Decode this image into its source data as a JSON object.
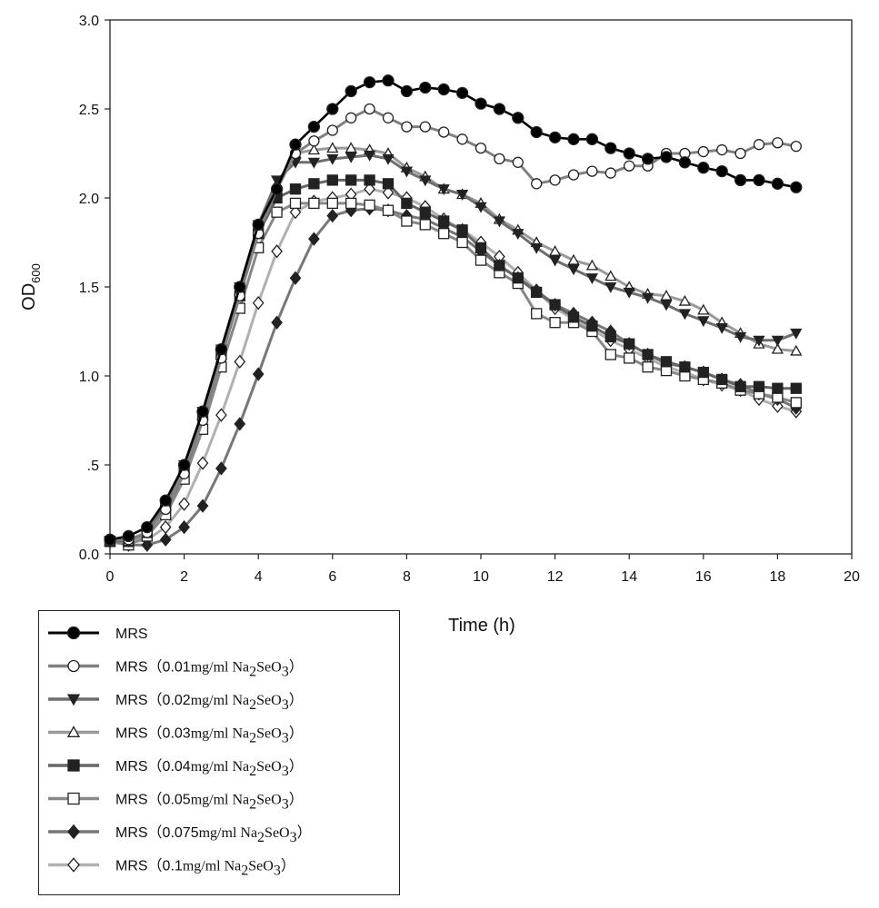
{
  "chart_data": {
    "type": "line",
    "xlabel": "Time (h)",
    "ylabel": "OD",
    "ylabel_sub": "600",
    "xlim": [
      0,
      20
    ],
    "ylim": [
      0,
      3.0
    ],
    "x_ticks": [
      0,
      2,
      4,
      6,
      8,
      10,
      12,
      14,
      16,
      18,
      20
    ],
    "y_ticks": [
      0,
      0.5,
      1.0,
      1.5,
      2.0,
      2.5,
      3.0
    ],
    "x_tick_labels": [
      "0",
      "2",
      "4",
      "6",
      "8",
      "10",
      "12",
      "14",
      "16",
      "18",
      "20"
    ],
    "y_tick_labels": [
      "0.0",
      ".5",
      "1.0",
      "1.5",
      "2.0",
      "2.5",
      "3.0"
    ],
    "grid": false,
    "legend_position": "below-left",
    "series": [
      {
        "name": "MRS",
        "label_main": "MRS",
        "label_conc": "",
        "marker": "circle-filled",
        "line_color": "#000000",
        "fill": "#000000",
        "x": [
          0,
          0.5,
          1,
          1.5,
          2,
          2.5,
          3,
          3.5,
          4,
          4.5,
          5,
          5.5,
          6,
          6.5,
          7,
          7.5,
          8,
          8.5,
          9,
          9.5,
          10,
          10.5,
          11,
          11.5,
          12,
          12.5,
          13,
          13.5,
          14,
          14.5,
          15,
          15.5,
          16,
          16.5,
          17,
          17.5,
          18,
          18.5
        ],
        "y": [
          0.08,
          0.1,
          0.15,
          0.3,
          0.5,
          0.8,
          1.15,
          1.5,
          1.85,
          2.05,
          2.3,
          2.4,
          2.5,
          2.6,
          2.65,
          2.66,
          2.6,
          2.62,
          2.61,
          2.59,
          2.53,
          2.5,
          2.45,
          2.37,
          2.34,
          2.33,
          2.33,
          2.28,
          2.25,
          2.22,
          2.23,
          2.2,
          2.17,
          2.15,
          2.1,
          2.1,
          2.08,
          2.06
        ]
      },
      {
        "name": "MRS (0.01mg/ml Na2SeO3)",
        "label_main": "MRS（0.01mg/ml Na",
        "label_conc": "0.01",
        "marker": "circle-open",
        "line_color": "#808080",
        "fill": "#ffffff",
        "x": [
          0,
          0.5,
          1,
          1.5,
          2,
          2.5,
          3,
          3.5,
          4,
          4.5,
          5,
          5.5,
          6,
          6.5,
          7,
          7.5,
          8,
          8.5,
          9,
          9.5,
          10,
          10.5,
          11,
          11.5,
          12,
          12.5,
          13,
          13.5,
          14,
          14.5,
          15,
          15.5,
          16,
          16.5,
          17,
          17.5,
          18,
          18.5
        ],
        "y": [
          0.08,
          0.08,
          0.12,
          0.25,
          0.45,
          0.75,
          1.1,
          1.45,
          1.8,
          2.05,
          2.25,
          2.32,
          2.38,
          2.45,
          2.5,
          2.45,
          2.4,
          2.4,
          2.37,
          2.33,
          2.28,
          2.22,
          2.2,
          2.08,
          2.1,
          2.13,
          2.15,
          2.14,
          2.18,
          2.18,
          2.25,
          2.25,
          2.26,
          2.27,
          2.25,
          2.3,
          2.31,
          2.29
        ]
      },
      {
        "name": "MRS (0.02mg/ml Na2SeO3)",
        "label_main": "MRS（0.02mg/ml Na",
        "label_conc": "0.02",
        "marker": "triangle-down-filled",
        "line_color": "#6e6e6e",
        "fill": "#222222",
        "x": [
          0,
          0.5,
          1,
          1.5,
          2,
          2.5,
          3,
          3.5,
          4,
          4.5,
          5,
          5.5,
          6,
          6.5,
          7,
          7.5,
          8,
          8.5,
          9,
          9.5,
          10,
          10.5,
          11,
          11.5,
          12,
          12.5,
          13,
          13.5,
          14,
          14.5,
          15,
          15.5,
          16,
          16.5,
          17,
          17.5,
          18,
          18.5
        ],
        "y": [
          0.07,
          0.07,
          0.12,
          0.28,
          0.5,
          0.8,
          1.15,
          1.5,
          1.85,
          2.1,
          2.2,
          2.2,
          2.22,
          2.23,
          2.24,
          2.22,
          2.15,
          2.1,
          2.05,
          2.02,
          1.95,
          1.87,
          1.8,
          1.72,
          1.65,
          1.6,
          1.55,
          1.5,
          1.47,
          1.44,
          1.4,
          1.35,
          1.31,
          1.27,
          1.22,
          1.2,
          1.2,
          1.24
        ]
      },
      {
        "name": "MRS (0.03mg/ml Na2SeO3)",
        "label_main": "MRS（0.03mg/ml Na",
        "label_conc": "0.03",
        "marker": "triangle-up-open",
        "line_color": "#999999",
        "fill": "#ffffff",
        "x": [
          0,
          0.5,
          1,
          1.5,
          2,
          2.5,
          3,
          3.5,
          4,
          4.5,
          5,
          5.5,
          6,
          6.5,
          7,
          7.5,
          8,
          8.5,
          9,
          9.5,
          10,
          10.5,
          11,
          11.5,
          12,
          12.5,
          13,
          13.5,
          14,
          14.5,
          15,
          15.5,
          16,
          16.5,
          17,
          17.5,
          18,
          18.5
        ],
        "y": [
          0.07,
          0.07,
          0.12,
          0.27,
          0.48,
          0.78,
          1.12,
          1.48,
          1.82,
          2.08,
          2.25,
          2.27,
          2.28,
          2.28,
          2.27,
          2.25,
          2.17,
          2.12,
          2.05,
          2.02,
          1.97,
          1.88,
          1.82,
          1.75,
          1.7,
          1.65,
          1.62,
          1.56,
          1.5,
          1.46,
          1.45,
          1.42,
          1.37,
          1.3,
          1.24,
          1.18,
          1.15,
          1.14
        ]
      },
      {
        "name": "MRS (0.04mg/ml Na2SeO3)",
        "label_main": "MRS（0.04mg/ml Na",
        "label_conc": "0.04",
        "marker": "square-filled",
        "line_color": "#666666",
        "fill": "#222222",
        "x": [
          0,
          0.5,
          1,
          1.5,
          2,
          2.5,
          3,
          3.5,
          4,
          4.5,
          5,
          5.5,
          6,
          6.5,
          7,
          7.5,
          8,
          8.5,
          9,
          9.5,
          10,
          10.5,
          11,
          11.5,
          12,
          12.5,
          13,
          13.5,
          14,
          14.5,
          15,
          15.5,
          16,
          16.5,
          17,
          17.5,
          18,
          18.5
        ],
        "y": [
          0.07,
          0.07,
          0.12,
          0.27,
          0.48,
          0.78,
          1.12,
          1.45,
          1.8,
          2.0,
          2.05,
          2.08,
          2.1,
          2.1,
          2.1,
          2.08,
          1.97,
          1.92,
          1.87,
          1.82,
          1.72,
          1.62,
          1.55,
          1.47,
          1.4,
          1.33,
          1.28,
          1.22,
          1.18,
          1.12,
          1.08,
          1.05,
          1.02,
          0.98,
          0.94,
          0.94,
          0.93,
          0.93
        ]
      },
      {
        "name": "MRS (0.05mg/ml Na2SeO3)",
        "label_main": "MRS（0.05mg/ml Na",
        "label_conc": "0.05",
        "marker": "square-open",
        "line_color": "#888888",
        "fill": "#ffffff",
        "x": [
          0,
          0.5,
          1,
          1.5,
          2,
          2.5,
          3,
          3.5,
          4,
          4.5,
          5,
          5.5,
          6,
          6.5,
          7,
          7.5,
          8,
          8.5,
          9,
          9.5,
          10,
          10.5,
          11,
          11.5,
          12,
          12.5,
          13,
          13.5,
          14,
          14.5,
          15,
          15.5,
          16,
          16.5,
          17,
          17.5,
          18,
          18.5
        ],
        "y": [
          0.07,
          0.05,
          0.1,
          0.22,
          0.42,
          0.7,
          1.05,
          1.38,
          1.72,
          1.92,
          1.97,
          1.97,
          1.97,
          1.97,
          1.96,
          1.93,
          1.87,
          1.85,
          1.8,
          1.75,
          1.65,
          1.58,
          1.52,
          1.35,
          1.3,
          1.3,
          1.25,
          1.12,
          1.1,
          1.05,
          1.03,
          1.0,
          0.98,
          0.96,
          0.92,
          0.9,
          0.88,
          0.85
        ]
      },
      {
        "name": "MRS (0.075mg/ml Na2SeO3)",
        "label_main": "MRS（0.075mg/ml Na",
        "label_conc": "0.075",
        "marker": "diamond-filled",
        "line_color": "#777777",
        "fill": "#222222",
        "x": [
          0,
          0.5,
          1,
          1.5,
          2,
          2.5,
          3,
          3.5,
          4,
          4.5,
          5,
          5.5,
          6,
          6.5,
          7,
          7.5,
          8,
          8.5,
          9,
          9.5,
          10,
          10.5,
          11,
          11.5,
          12,
          12.5,
          13,
          13.5,
          14,
          14.5,
          15,
          15.5,
          16,
          16.5,
          17,
          17.5,
          18,
          18.5
        ],
        "y": [
          0.07,
          0.05,
          0.05,
          0.08,
          0.15,
          0.27,
          0.48,
          0.73,
          1.01,
          1.3,
          1.55,
          1.77,
          1.9,
          1.93,
          1.94,
          1.93,
          1.9,
          1.88,
          1.83,
          1.78,
          1.7,
          1.62,
          1.55,
          1.48,
          1.4,
          1.35,
          1.3,
          1.25,
          1.18,
          1.12,
          1.07,
          1.05,
          1.02,
          0.98,
          0.95,
          0.9,
          0.87,
          0.82
        ]
      },
      {
        "name": "MRS (0.1mg/ml Na2SeO3)",
        "label_main": "MRS（0.1mg/ml Na",
        "label_conc": "0.1",
        "marker": "diamond-open",
        "line_color": "#b0b0b0",
        "fill": "#ffffff",
        "x": [
          0,
          0.5,
          1,
          1.5,
          2,
          2.5,
          3,
          3.5,
          4,
          4.5,
          5,
          5.5,
          6,
          6.5,
          7,
          7.5,
          8,
          8.5,
          9,
          9.5,
          10,
          10.5,
          11,
          11.5,
          12,
          12.5,
          13,
          13.5,
          14,
          14.5,
          15,
          15.5,
          16,
          16.5,
          17,
          17.5,
          18,
          18.5
        ],
        "y": [
          0.07,
          0.06,
          0.08,
          0.15,
          0.28,
          0.51,
          0.78,
          1.08,
          1.41,
          1.7,
          1.92,
          1.98,
          2.0,
          2.02,
          2.05,
          2.03,
          2.0,
          1.95,
          1.88,
          1.82,
          1.75,
          1.67,
          1.58,
          1.48,
          1.38,
          1.32,
          1.26,
          1.2,
          1.15,
          1.1,
          1.05,
          1.02,
          0.98,
          0.95,
          0.92,
          0.87,
          0.83,
          0.8
        ]
      }
    ]
  }
}
